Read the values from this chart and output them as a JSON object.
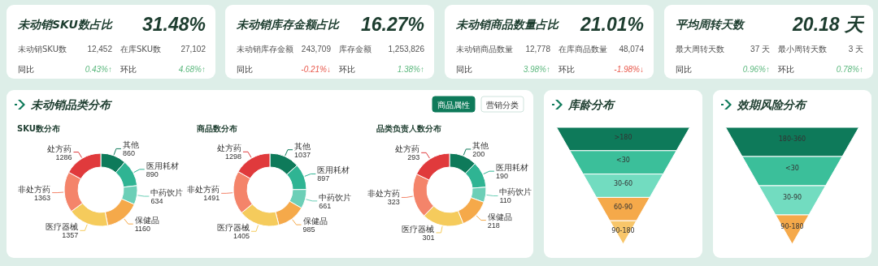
{
  "chart_data": [
    {
      "type": "other",
      "title": "未动销SKU数占比",
      "subtitle": "31.48%",
      "annotations": [
        "未动销SKU数",
        "12,452",
        "在库SKU数",
        "27,102",
        "同比",
        "0.43%↑",
        "环比",
        "4.68%↑"
      ],
      "colors": [
        "#555555",
        "#555555",
        "#555555",
        "#555555",
        "#333333",
        "#5cb87e",
        "#333333",
        "#5cb87e"
      ]
    },
    {
      "type": "other",
      "title": "未动销库存金额占比",
      "subtitle": "16.27%",
      "annotations": [
        "未动销库存金额",
        "243,709",
        "库存金额",
        "1,253,826",
        "同比",
        "-0.21%↓",
        "环比",
        "1.38%↑"
      ],
      "colors": [
        "#555555",
        "#555555",
        "#555555",
        "#555555",
        "#333333",
        "#e8574a",
        "#333333",
        "#5cb87e"
      ]
    },
    {
      "type": "other",
      "title": "未动销商品数量占比",
      "subtitle": "21.01%",
      "annotations": [
        "未动销商品数量",
        "12,778",
        "在库商品数量",
        "48,074",
        "同比",
        "3.98%↑",
        "环比",
        "-1.98%↓"
      ],
      "colors": [
        "#555555",
        "#555555",
        "#555555",
        "#555555",
        "#333333",
        "#5cb87e",
        "#333333",
        "#e8574a"
      ]
    },
    {
      "type": "other",
      "title": "平均周转天数",
      "subtitle": "20.18 天",
      "annotations": [
        "最大周转天数",
        "37 天",
        "最小周转天数",
        "3 天",
        "同比",
        "0.96%↑",
        "环比",
        "0.78%↑"
      ],
      "colors": [
        "#555555",
        "#555555",
        "#555555",
        "#555555",
        "#333333",
        "#5cb87e",
        "#333333",
        "#5cb87e"
      ]
    },
    {
      "type": "other",
      "title": "未动销品类分布",
      "annotations": [
        "商品属性",
        "营销分类"
      ]
    },
    {
      "type": "donut",
      "title": "SKU数分布",
      "categories": [
        "其他",
        "医用耗材",
        "中药饮片",
        "保健品",
        "医疗器械",
        "非处方药",
        "处方药"
      ],
      "values": [
        860,
        890,
        634,
        1160,
        1357,
        1363,
        1286
      ],
      "colors": [
        "#0e7a5a",
        "#2fb493",
        "#6ccfb7",
        "#f5a94a",
        "#f5cb5c",
        "#f4846a",
        "#e03a3c"
      ],
      "data_labels": true
    },
    {
      "type": "donut",
      "title": "商品数分布",
      "categories": [
        "其他",
        "医用耗材",
        "中药饮片",
        "保健品",
        "医疗器械",
        "非处方药",
        "处方药"
      ],
      "values": [
        1037,
        897,
        661,
        985,
        1405,
        1491,
        1298
      ],
      "colors": [
        "#0e7a5a",
        "#2fb493",
        "#6ccfb7",
        "#f5a94a",
        "#f5cb5c",
        "#f4846a",
        "#e03a3c"
      ],
      "data_labels": true
    },
    {
      "type": "donut",
      "title": "品类负责人数分布",
      "categories": [
        "其他",
        "医用耗材",
        "中药饮片",
        "保健品",
        "医疗器械",
        "非处方药",
        "处方药"
      ],
      "values": [
        200,
        190,
        110,
        218,
        301,
        323,
        293
      ],
      "colors": [
        "#0e7a5a",
        "#2fb493",
        "#6ccfb7",
        "#f5a94a",
        "#f5cb5c",
        "#f4846a",
        "#e03a3c"
      ],
      "data_labels": true
    },
    {
      "type": "other",
      "title": "库龄分布",
      "categories": [
        ">180",
        "<30",
        "30-60",
        "60-90",
        "90-180"
      ],
      "colors": [
        "#0e7a5a",
        "#3bbf9a",
        "#72dcc0",
        "#f5a94a",
        "#f8c66a"
      ]
    },
    {
      "type": "other",
      "title": "效期风险分布",
      "categories": [
        "180-360",
        "<30",
        "30-90",
        "90-180"
      ],
      "colors": [
        "#0e7a5a",
        "#3bbf9a",
        "#72dcc0",
        "#f5a94a"
      ]
    }
  ]
}
